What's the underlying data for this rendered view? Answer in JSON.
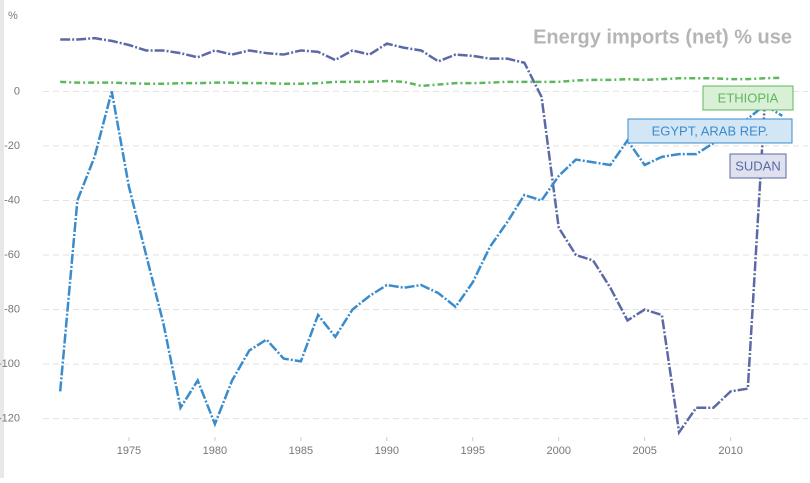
{
  "chart_data": {
    "type": "line",
    "title": "Energy imports (net) % use",
    "y_label": "%",
    "x": [
      1971,
      1972,
      1973,
      1974,
      1975,
      1976,
      1977,
      1978,
      1979,
      1980,
      1981,
      1982,
      1983,
      1984,
      1985,
      1986,
      1987,
      1988,
      1989,
      1990,
      1991,
      1992,
      1993,
      1994,
      1995,
      1996,
      1997,
      1998,
      1999,
      2000,
      2001,
      2002,
      2003,
      2004,
      2005,
      2006,
      2007,
      2008,
      2009,
      2010,
      2011,
      2012,
      2013
    ],
    "series": [
      {
        "name": "SUDAN",
        "color": "#5b6aa6",
        "label_bg": "#dfe1ef",
        "values": [
          19,
          19,
          19.5,
          18.5,
          17,
          15,
          15,
          14,
          12.5,
          15,
          13.5,
          15,
          14,
          13.5,
          15,
          14.5,
          11.5,
          15,
          13.5,
          17.5,
          16,
          15,
          11,
          13.5,
          13,
          12,
          12,
          10.5,
          -2,
          -50,
          -60,
          -62,
          -72,
          -84,
          -80,
          -82,
          -125,
          -116,
          -116,
          -110,
          -109,
          -3,
          null
        ]
      },
      {
        "name": "EGYPT, ARAB REP.",
        "color": "#3a8ccc",
        "label_bg": "#d3e6f6",
        "values": [
          -110,
          -40,
          -24,
          0,
          -35,
          -60,
          -85,
          -116,
          -106,
          -122,
          -106,
          -95,
          -91,
          -98,
          -99,
          -82,
          -90,
          -80,
          -75,
          -71,
          -72,
          -71,
          -74,
          -79,
          -70,
          -57,
          -48,
          -38,
          -40,
          -31,
          -25,
          -26,
          -27,
          -18,
          -27,
          -24,
          -23,
          -23,
          -19,
          -17,
          -10,
          -5,
          -9
        ]
      },
      {
        "name": "ETHIOPIA",
        "color": "#5cb85c",
        "label_bg": "#d9efd6",
        "values": [
          3.5,
          3.2,
          3.2,
          3.2,
          3,
          2.8,
          2.8,
          3,
          3,
          3.2,
          3.2,
          3,
          3,
          2.8,
          2.8,
          3,
          3.5,
          3.5,
          3.5,
          3.8,
          3.5,
          2,
          2.5,
          3,
          3,
          3.2,
          3.5,
          3.5,
          3.5,
          3.5,
          4,
          4.2,
          4.2,
          4.5,
          4.2,
          4.5,
          4.8,
          4.8,
          4.8,
          4.5,
          4.5,
          4.8,
          5
        ]
      }
    ],
    "xlim": [
      1970,
      2014.5
    ],
    "xticks": [
      1975,
      1980,
      1985,
      1990,
      1995,
      2000,
      2005,
      2010
    ],
    "ylim": [
      -126,
      28
    ],
    "yticks": [
      -120,
      -100,
      -80,
      -60,
      -40,
      -20,
      0
    ],
    "grid": true
  }
}
